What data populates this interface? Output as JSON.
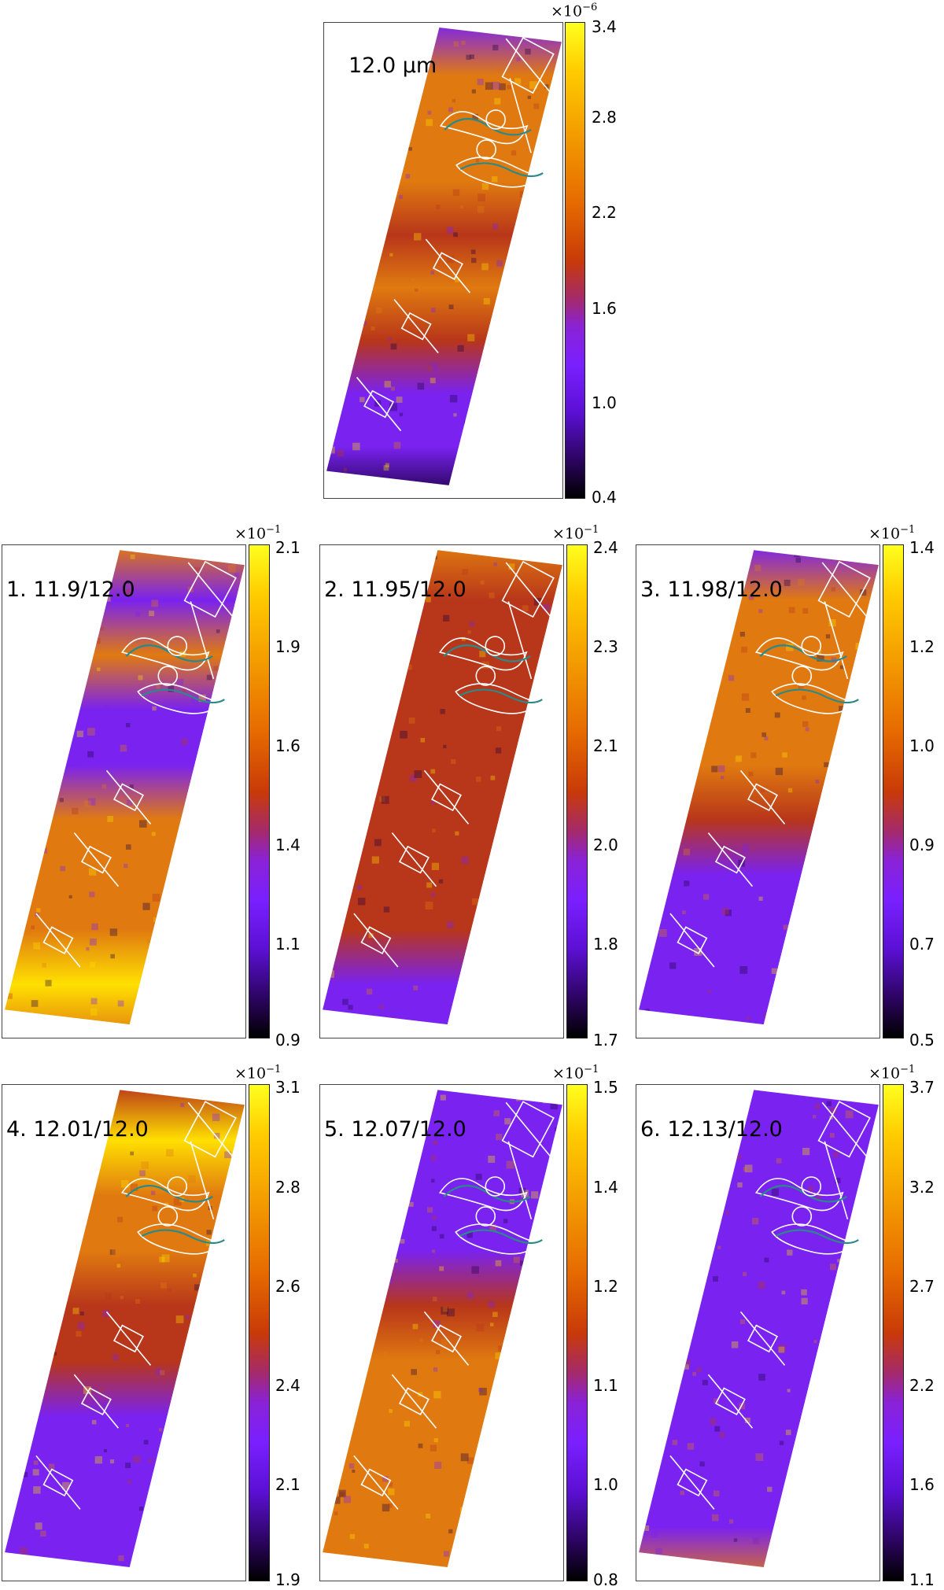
{
  "panels": [
    {
      "id": "p0",
      "label": "12.0 μm",
      "multiplier_base": "×10",
      "multiplier_exp": "−6",
      "ticks": [
        "3.4",
        "2.8",
        "2.2",
        "1.6",
        "1.0",
        "0.4"
      ]
    },
    {
      "id": "p1",
      "label": "1. 11.9/12.0",
      "multiplier_base": "×10",
      "multiplier_exp": "−1",
      "ticks": [
        "2.1",
        "1.9",
        "1.6",
        "1.4",
        "1.1",
        "0.9"
      ]
    },
    {
      "id": "p2",
      "label": "2. 11.95/12.0",
      "multiplier_base": "×10",
      "multiplier_exp": "−1",
      "ticks": [
        "2.4",
        "2.3",
        "2.1",
        "2.0",
        "1.8",
        "1.7"
      ]
    },
    {
      "id": "p3",
      "label": "3. 11.98/12.0",
      "multiplier_base": "×10",
      "multiplier_exp": "−1",
      "ticks": [
        "1.4",
        "1.2",
        "1.0",
        "0.9",
        "0.7",
        "0.5"
      ]
    },
    {
      "id": "p4",
      "label": "4. 12.01/12.0",
      "multiplier_base": "×10",
      "multiplier_exp": "−1",
      "ticks": [
        "3.1",
        "2.8",
        "2.6",
        "2.4",
        "2.1",
        "1.9"
      ]
    },
    {
      "id": "p5",
      "label": "5. 12.07/12.0",
      "multiplier_base": "×10",
      "multiplier_exp": "−1",
      "ticks": [
        "1.5",
        "1.4",
        "1.2",
        "1.1",
        "1.0",
        "0.8"
      ]
    },
    {
      "id": "p6",
      "label": "6. 12.13/12.0",
      "multiplier_base": "×10",
      "multiplier_exp": "−1",
      "ticks": [
        "3.7",
        "3.2",
        "2.7",
        "2.2",
        "1.6",
        "1.1"
      ]
    }
  ],
  "colors": {
    "contour_white": "#ffffff",
    "contour_teal": "#2a8a8a",
    "hot": "#ffe000",
    "orange": "#e07a10",
    "red": "#b8361a",
    "purple": "#7a22f0",
    "dark": "#1a0040"
  },
  "map_style": {
    "p0": [
      "purple",
      "orange",
      "orange",
      "orange",
      "red",
      "orange",
      "red",
      "purple",
      "purple",
      "dark"
    ],
    "p1": [
      "orange",
      "purple",
      "orange",
      "purple",
      "purple",
      "orange",
      "orange",
      "orange",
      "hot",
      "orange"
    ],
    "p2": [
      "orange",
      "red",
      "red",
      "red",
      "red",
      "red",
      "red",
      "red",
      "purple",
      "purple"
    ],
    "p3": [
      "purple",
      "orange",
      "orange",
      "orange",
      "orange",
      "red",
      "purple",
      "purple",
      "purple",
      "purple"
    ],
    "p4": [
      "red",
      "hot",
      "orange",
      "orange",
      "red",
      "red",
      "purple",
      "purple",
      "purple",
      "purple"
    ],
    "p5": [
      "purple",
      "purple",
      "purple",
      "purple",
      "red",
      "orange",
      "orange",
      "orange",
      "orange",
      "orange"
    ],
    "p6": [
      "purple",
      "purple",
      "purple",
      "purple",
      "purple",
      "purple",
      "purple",
      "purple",
      "purple",
      "orange"
    ]
  }
}
